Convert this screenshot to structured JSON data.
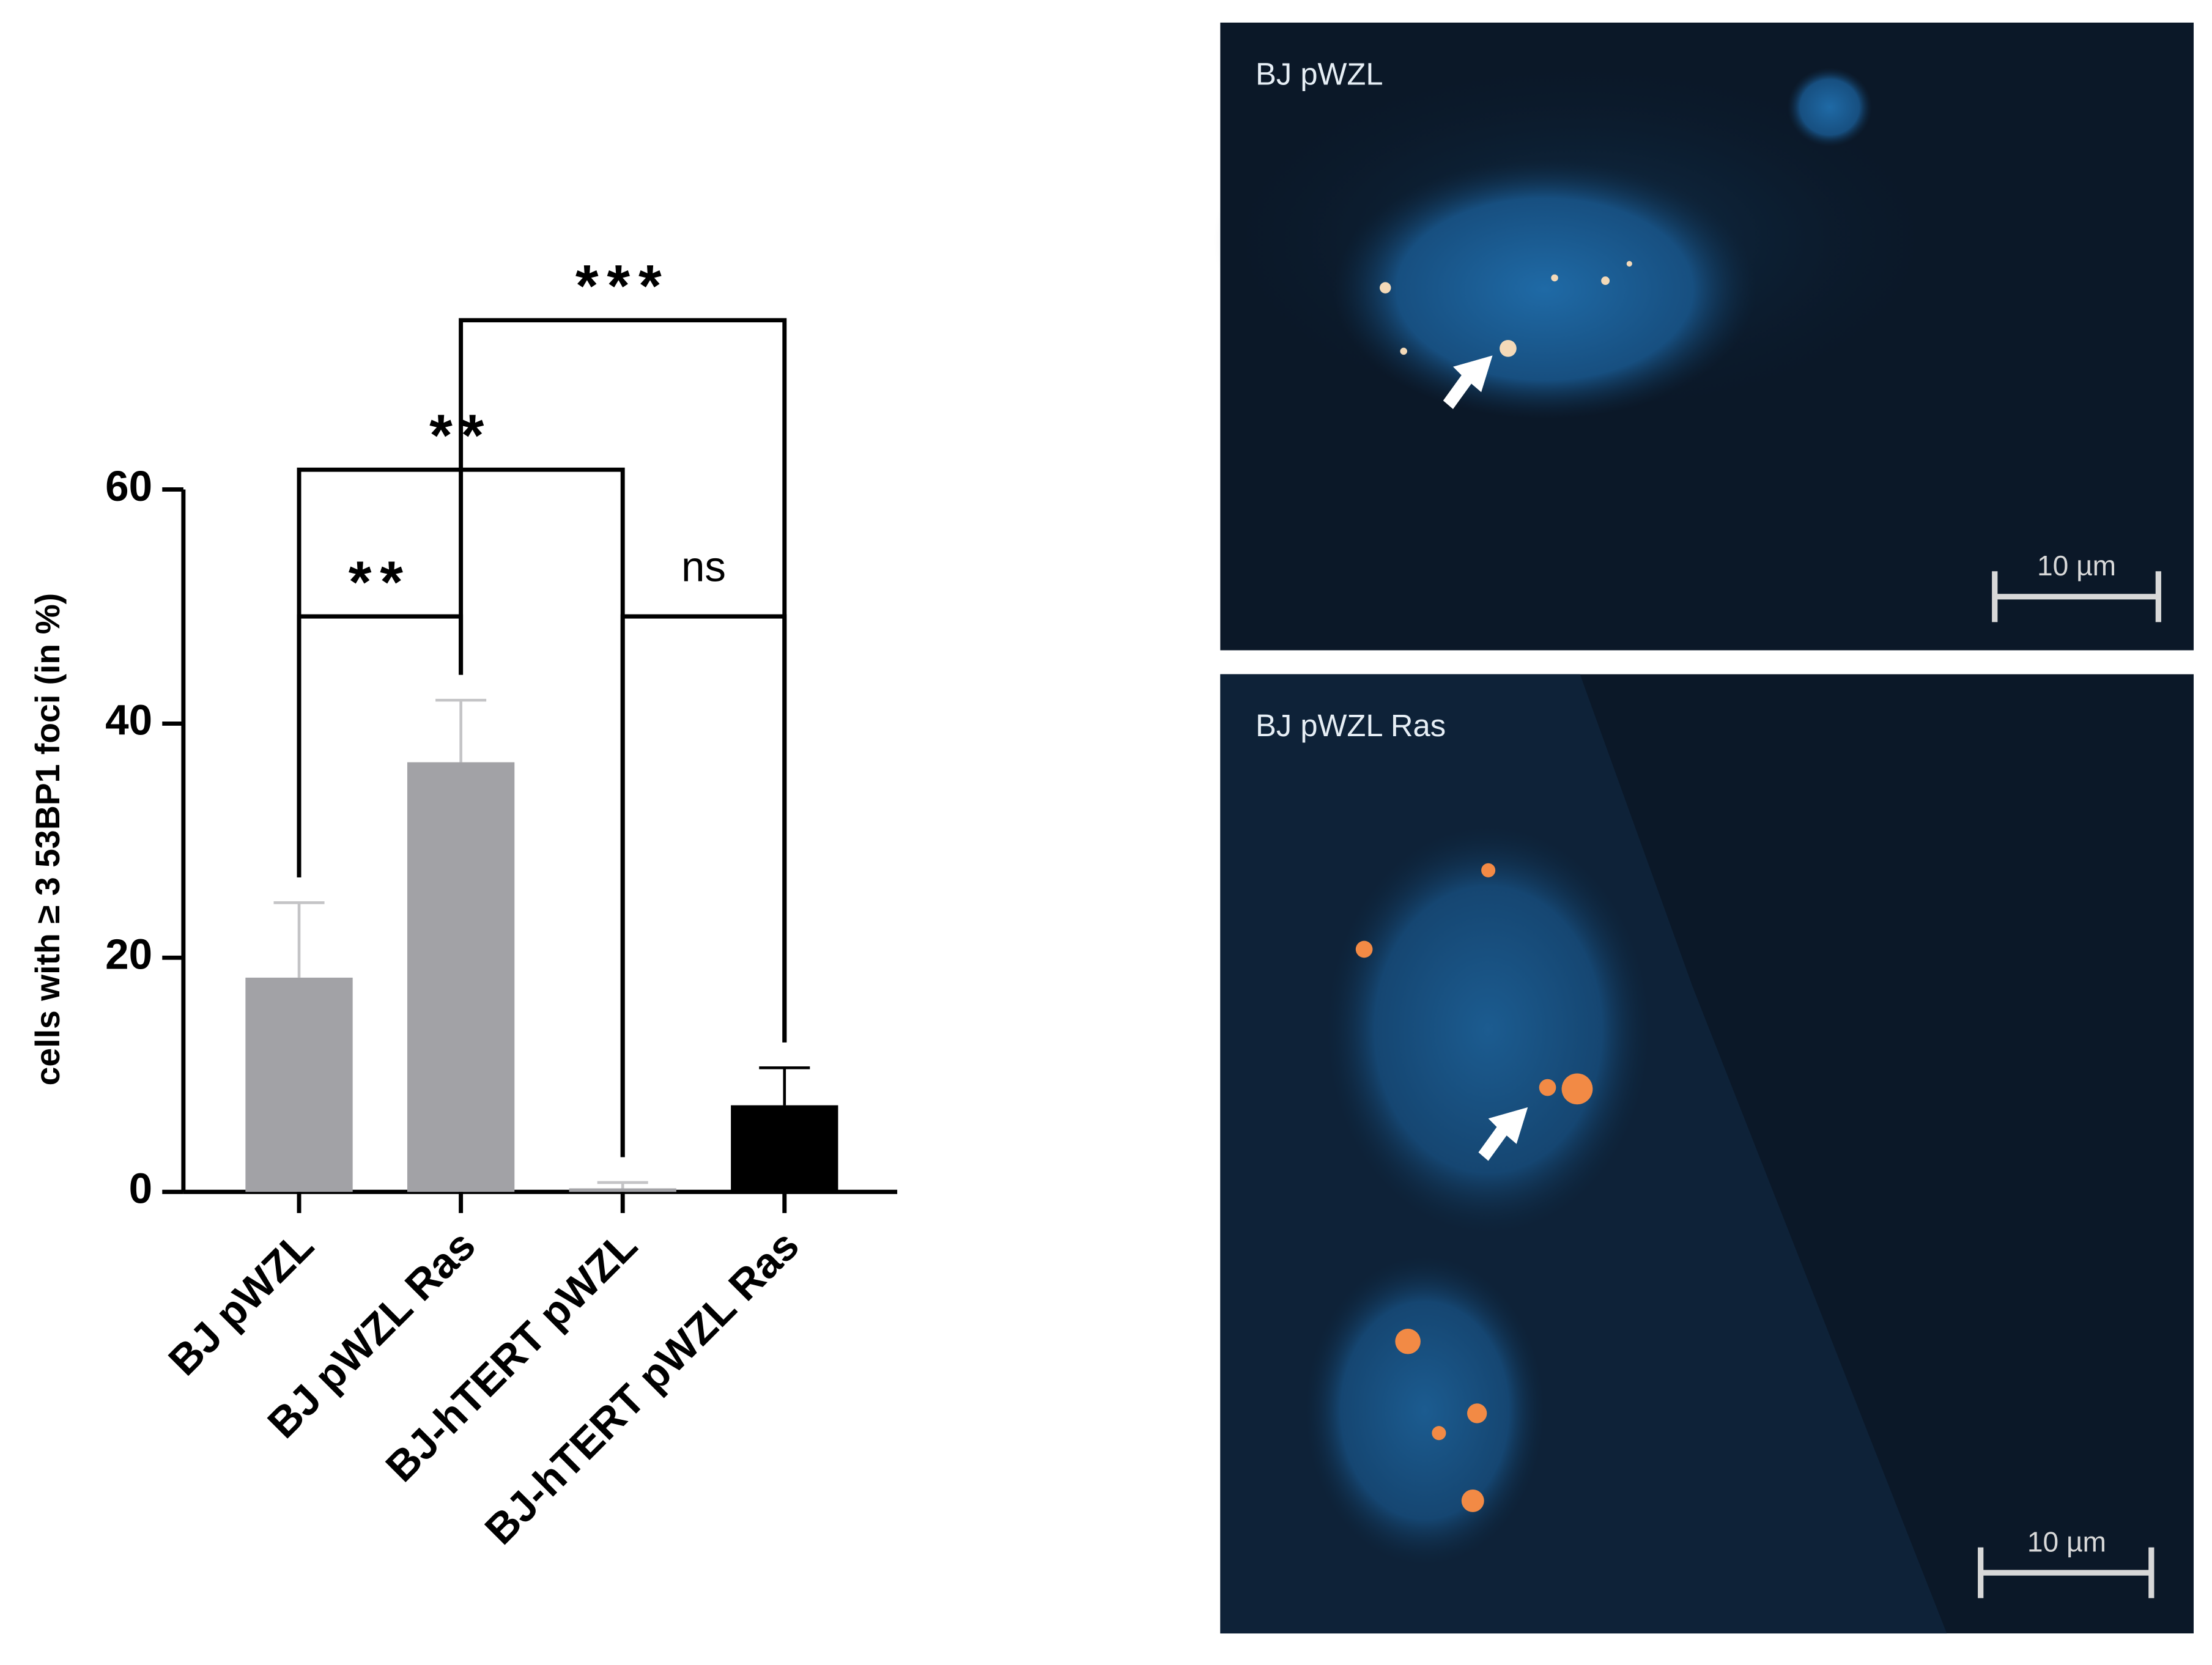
{
  "chart_data": {
    "type": "bar",
    "y_label": "cells with ≥ 3 53BP1 foci (in %)",
    "categories": [
      "BJ pWZL",
      "BJ pWZL Ras",
      "BJ-hTERT  pWZL",
      "BJ-hTERT  pWZL Ras"
    ],
    "values": [
      18.3,
      36.7,
      0.3,
      7.4
    ],
    "errors": [
      6.4,
      5.3,
      0.5,
      3.2
    ],
    "colors": [
      "#a2a2a6",
      "#a2a2a6",
      "#a2a2a6",
      "#000000"
    ],
    "ylim": [
      0,
      60
    ],
    "yticks": [
      0,
      20,
      40,
      60
    ],
    "annotations": [
      {
        "text": "**",
        "pair": [
          0,
          1
        ]
      },
      {
        "text": "**",
        "pair": [
          0,
          2
        ]
      },
      {
        "text": "***",
        "pair": [
          1,
          3
        ]
      },
      {
        "text": "ns",
        "pair": [
          2,
          3
        ]
      }
    ]
  },
  "panels": [
    {
      "label": "BJ pWZL",
      "scale_bar": "10 µm"
    },
    {
      "label": "BJ pWZL Ras",
      "scale_bar": "10 µm"
    }
  ]
}
